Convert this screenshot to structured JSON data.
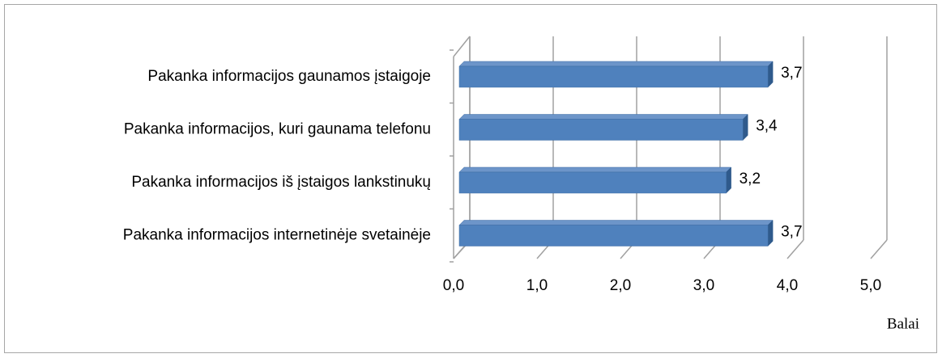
{
  "chart_data": {
    "type": "bar3d_horizontal",
    "categories": [
      "Pakanka informacijos gaunamos įstaigoje",
      "Pakanka informacijos, kuri gaunama telefonu",
      "Pakanka informacijos iš įstaigos lankstinukų",
      "Pakanka informacijos internetinėje svetainėje"
    ],
    "values": [
      3.7,
      3.4,
      3.2,
      3.7
    ],
    "value_labels": [
      "3,7",
      "3,4",
      "3,2",
      "3,7"
    ],
    "color": "#4f81bd",
    "xlim": [
      0,
      5
    ],
    "xticks": [
      {
        "value": 0,
        "label": "0,0"
      },
      {
        "value": 1,
        "label": "1,0"
      },
      {
        "value": 2,
        "label": "2,0"
      },
      {
        "value": 3,
        "label": "3,0"
      },
      {
        "value": 4,
        "label": "4,0"
      },
      {
        "value": 5,
        "label": "5,0"
      }
    ],
    "x_label": "Balai",
    "grid": true
  }
}
